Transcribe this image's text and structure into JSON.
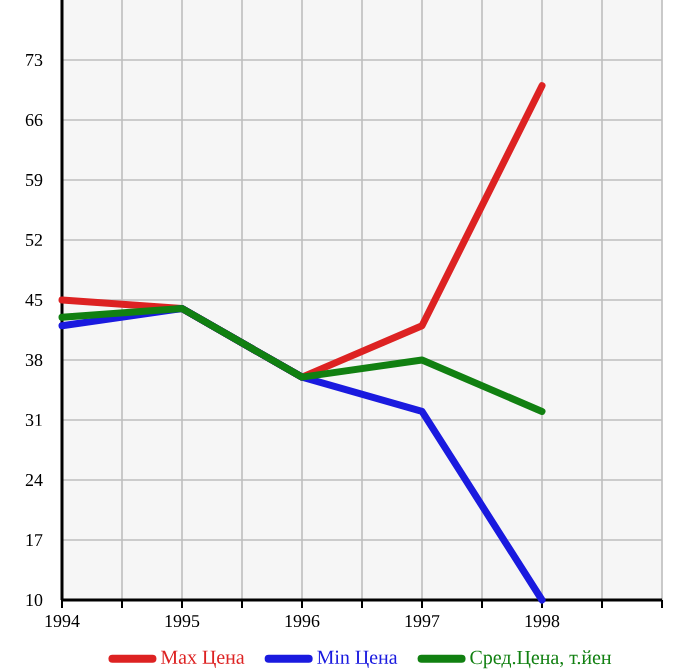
{
  "chart_data": {
    "type": "line",
    "x": [
      1994,
      1995,
      1996,
      1997,
      1998
    ],
    "series": [
      {
        "name": "Max Цена",
        "color": "#dd2222",
        "values": [
          45,
          44,
          36,
          42,
          70
        ]
      },
      {
        "name": "Min Цена",
        "color": "#1a1adf",
        "values": [
          42,
          44,
          36,
          32,
          10
        ]
      },
      {
        "name": "Сред.Цена, т.йен",
        "color": "#118011",
        "values": [
          43,
          44,
          36,
          38,
          32
        ]
      }
    ],
    "xlim": [
      1994,
      1999
    ],
    "xticks": [
      1994,
      {
        "value": 1994.5,
        "label": null
      },
      1995,
      {
        "value": 1995.5,
        "label": null
      },
      1996,
      {
        "value": 1996.5,
        "label": null
      },
      1997,
      {
        "value": 1997.5,
        "label": null
      },
      1998,
      {
        "value": 1998.5,
        "label": null
      },
      {
        "value": 1999,
        "label": null
      }
    ],
    "ylim": [
      10,
      80
    ],
    "yticks": [
      10,
      17,
      24,
      31,
      38,
      45,
      52,
      59,
      66,
      73
    ],
    "grid": true,
    "legend": "bottom",
    "marker": "none",
    "line_style": "solid"
  }
}
